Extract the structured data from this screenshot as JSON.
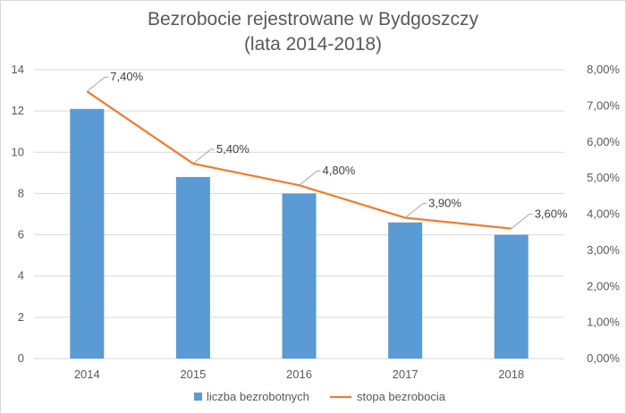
{
  "chart_data": {
    "type": "bar+line",
    "title_line1": "Bezrobocie rejestrowane w Bydgoszczy",
    "title_line2": "(lata 2014-2018)",
    "categories": [
      "2014",
      "2015",
      "2016",
      "2017",
      "2018"
    ],
    "series": [
      {
        "name": "liczba bezrobotnych",
        "type": "bar",
        "axis": "left",
        "color": "#5b9bd5",
        "values": [
          12.1,
          8.8,
          8.0,
          6.6,
          6.0
        ]
      },
      {
        "name": "stopa bezrobocia",
        "type": "line",
        "axis": "right",
        "color": "#ed7d31",
        "values": [
          7.4,
          5.4,
          4.8,
          3.9,
          3.6
        ],
        "data_labels": [
          "7,40%",
          "5,40%",
          "4,80%",
          "3,90%",
          "3,60%"
        ]
      }
    ],
    "y_left": {
      "min": 0,
      "max": 14,
      "ticks": [
        "0",
        "2",
        "4",
        "6",
        "8",
        "10",
        "12",
        "14"
      ]
    },
    "y_right": {
      "min": 0,
      "max": 8,
      "ticks": [
        "0,00%",
        "1,00%",
        "2,00%",
        "3,00%",
        "4,00%",
        "5,00%",
        "6,00%",
        "7,00%",
        "8,00%"
      ]
    },
    "grid": true,
    "legend_position": "bottom",
    "colors": {
      "grid": "#d9d9d9",
      "text": "#595959",
      "leader": "#a6a6a6"
    }
  }
}
